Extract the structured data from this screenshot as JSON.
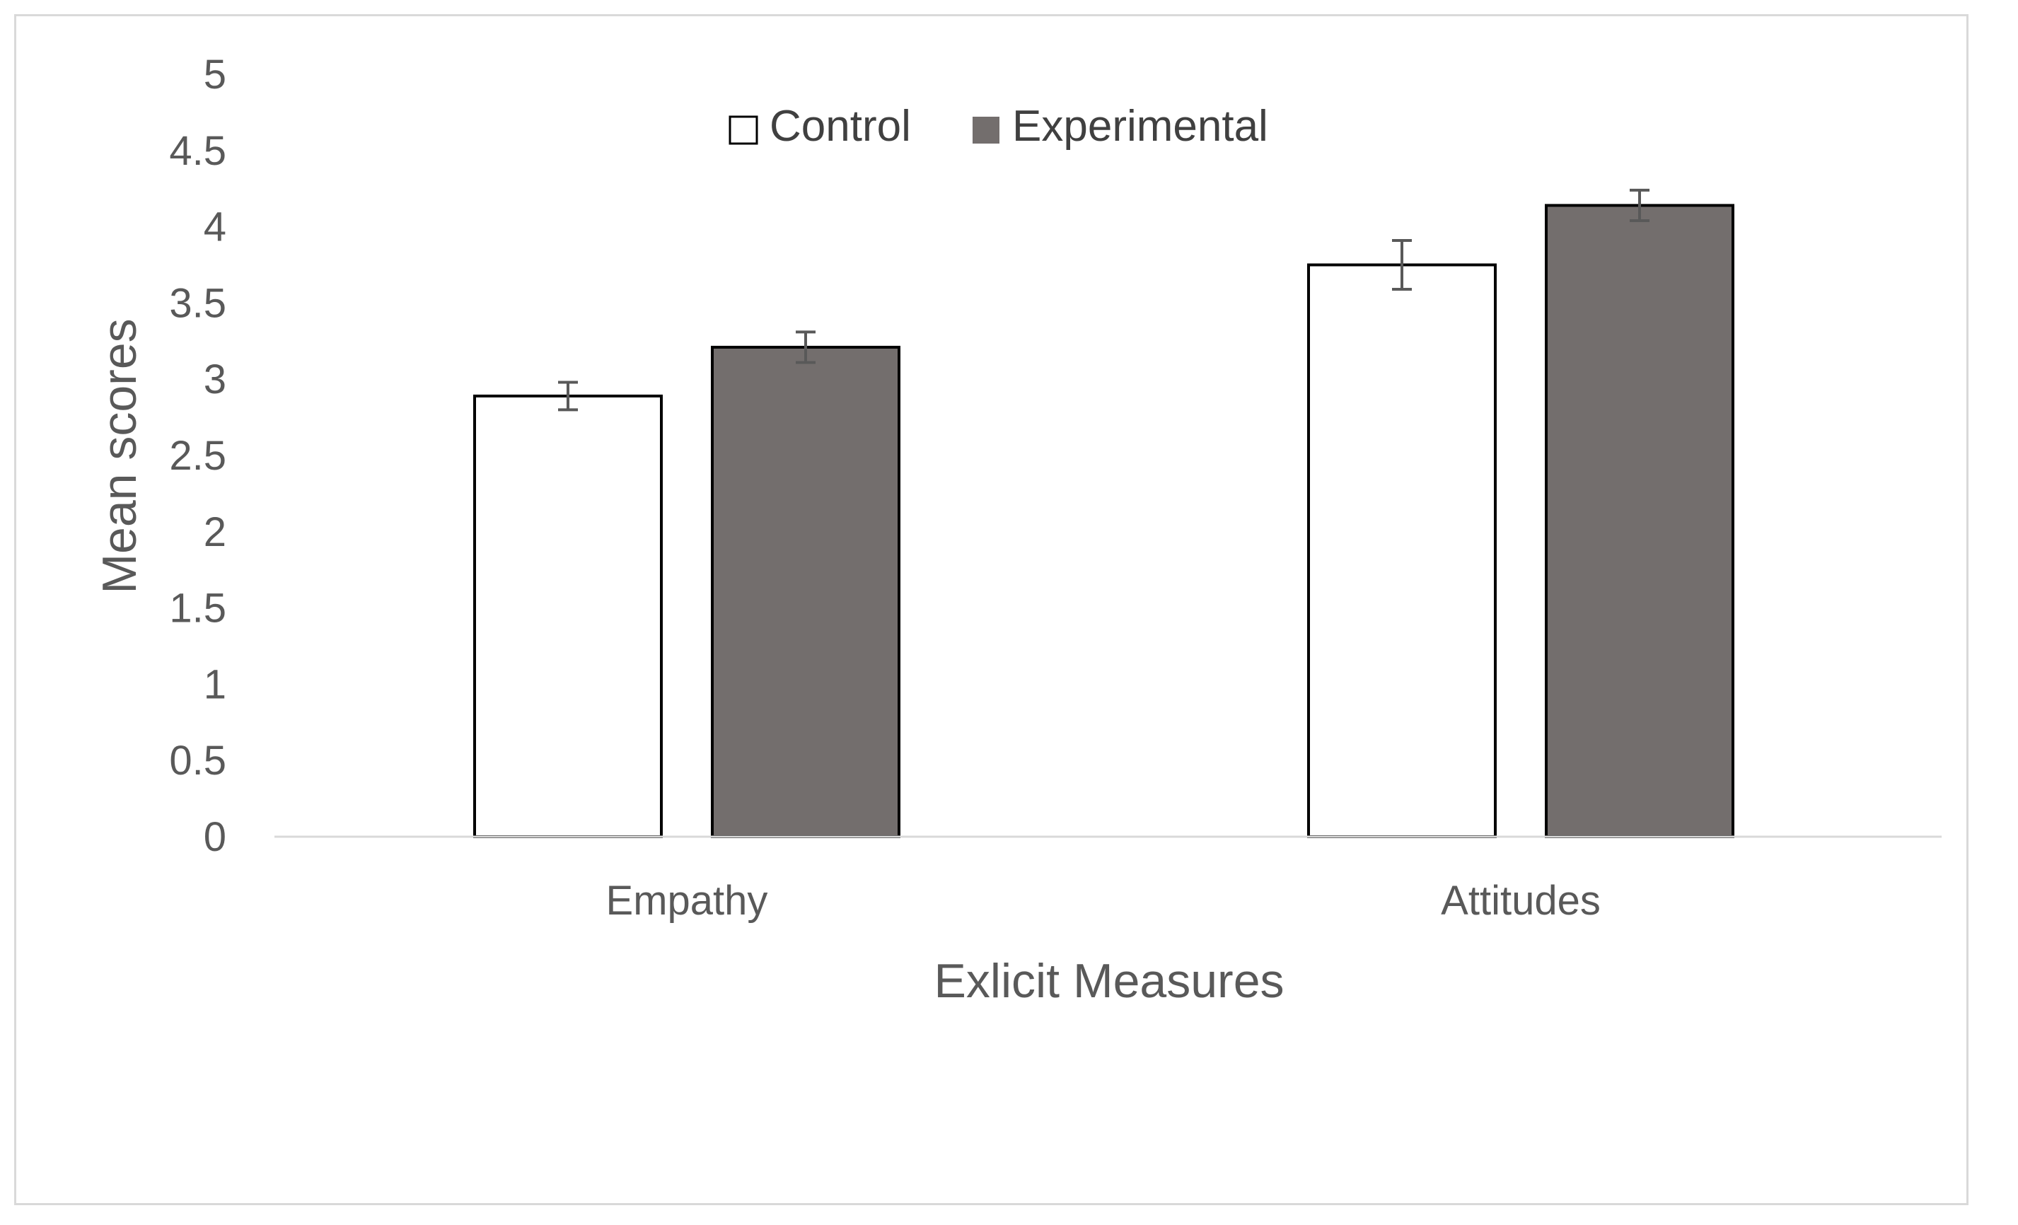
{
  "chart_data": {
    "type": "bar",
    "title": "",
    "xlabel": "Exlicit Measures",
    "ylabel": "Mean scores",
    "ylim": [
      0,
      5
    ],
    "ytick_step": 0.5,
    "yticks": [
      "0",
      "0.5",
      "1",
      "1.5",
      "2",
      "2.5",
      "3",
      "3.5",
      "4",
      "4.5",
      "5"
    ],
    "grid": false,
    "legend_position": "top-center",
    "categories": [
      "Empathy",
      "Attitudes"
    ],
    "series": [
      {
        "name": "Control",
        "values": [
          2.89,
          3.75
        ],
        "errors": [
          0.09,
          0.16
        ],
        "fill": "#ffffff",
        "stroke": "#000000"
      },
      {
        "name": "Experimental",
        "values": [
          3.21,
          4.14
        ],
        "errors": [
          0.1,
          0.1
        ],
        "fill": "#736e6d",
        "stroke": "#000000"
      }
    ],
    "colors": {
      "axis": "#d9d9d9",
      "error_bar": "#595959",
      "text": "#595959"
    }
  }
}
